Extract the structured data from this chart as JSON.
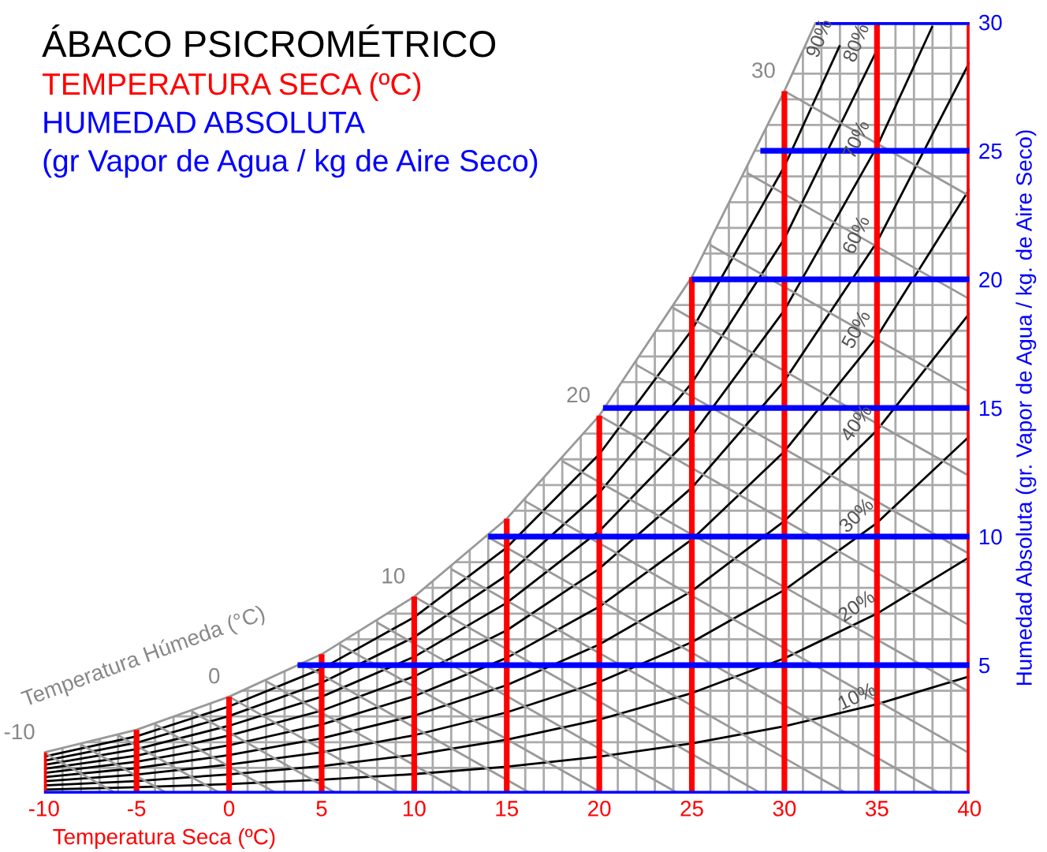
{
  "chart_data": {
    "type": "line",
    "title": "ÁBACO PSICROMÉTRICO",
    "subtitle": "TEMPERATURA SECA (ºC)",
    "xlabel": "Temperatura Seca (ºC)",
    "ylabel": "Humedad Absoluta (gr. Vapor de Agua / kg. de Aire Seco)",
    "xlim": [
      -10,
      40
    ],
    "ylim": [
      0,
      30
    ],
    "xticks": [
      -10,
      {
        "value": -9,
        "label": null
      },
      {
        "value": -8,
        "label": null
      },
      {
        "value": -7,
        "label": null
      },
      {
        "value": -6,
        "label": null
      },
      -5,
      {
        "value": -4,
        "label": null
      },
      {
        "value": -3,
        "label": null
      },
      {
        "value": -2,
        "label": null
      },
      {
        "value": -1,
        "label": null
      },
      0,
      {
        "value": 1,
        "label": null
      },
      {
        "value": 2,
        "label": null
      },
      {
        "value": 3,
        "label": null
      },
      {
        "value": 4,
        "label": null
      },
      5,
      {
        "value": 6,
        "label": null
      },
      {
        "value": 7,
        "label": null
      },
      {
        "value": 8,
        "label": null
      },
      {
        "value": 9,
        "label": null
      },
      10,
      {
        "value": 11,
        "label": null
      },
      {
        "value": 12,
        "label": null
      },
      {
        "value": 13,
        "label": null
      },
      {
        "value": 14,
        "label": null
      },
      15,
      {
        "value": 16,
        "label": null
      },
      {
        "value": 17,
        "label": null
      },
      {
        "value": 18,
        "label": null
      },
      {
        "value": 19,
        "label": null
      },
      20,
      {
        "value": 21,
        "label": null
      },
      {
        "value": 22,
        "label": null
      },
      {
        "value": 23,
        "label": null
      },
      {
        "value": 24,
        "label": null
      },
      25,
      {
        "value": 26,
        "label": null
      },
      {
        "value": 27,
        "label": null
      },
      {
        "value": 28,
        "label": null
      },
      {
        "value": 29,
        "label": null
      },
      30,
      {
        "value": 31,
        "label": null
      },
      {
        "value": 32,
        "label": null
      },
      {
        "value": 33,
        "label": null
      },
      {
        "value": 34,
        "label": null
      },
      35,
      {
        "value": 36,
        "label": null
      },
      {
        "value": 37,
        "label": null
      },
      {
        "value": 38,
        "label": null
      },
      {
        "value": 39,
        "label": null
      },
      40
    ],
    "yticks": [
      {
        "value": 0,
        "label": null
      },
      {
        "value": 1,
        "label": null
      },
      {
        "value": 2,
        "label": null
      },
      {
        "value": 3,
        "label": null
      },
      {
        "value": 4,
        "label": null
      },
      5,
      {
        "value": 6,
        "label": null
      },
      {
        "value": 7,
        "label": null
      },
      {
        "value": 8,
        "label": null
      },
      {
        "value": 9,
        "label": null
      },
      10,
      {
        "value": 11,
        "label": null
      },
      {
        "value": 12,
        "label": null
      },
      {
        "value": 13,
        "label": null
      },
      {
        "value": 14,
        "label": null
      },
      15,
      {
        "value": 16,
        "label": null
      },
      {
        "value": 17,
        "label": null
      },
      {
        "value": 18,
        "label": null
      },
      {
        "value": 19,
        "label": null
      },
      20,
      {
        "value": 21,
        "label": null
      },
      {
        "value": 22,
        "label": null
      },
      {
        "value": 23,
        "label": null
      },
      {
        "value": 24,
        "label": null
      },
      25,
      {
        "value": 26,
        "label": null
      },
      {
        "value": 27,
        "label": null
      },
      {
        "value": 28,
        "label": null
      },
      {
        "value": 29,
        "label": null
      },
      30
    ],
    "grid": true,
    "marker": "none",
    "line_style": "solid",
    "series": [
      {
        "color": "#999999",
        "x": [
          -10,
          -5,
          0,
          5,
          10,
          15,
          20,
          25,
          30,
          31.7
        ],
        "values": [
          1.6,
          2.48,
          3.77,
          5.42,
          7.66,
          10.69,
          14.7,
          20.09,
          27.32,
          30
        ]
      },
      {
        "color": "#000000",
        "x": [
          -10,
          -5,
          0,
          5,
          10,
          15,
          20,
          25,
          30,
          35,
          40
        ],
        "values": [
          0.16,
          0.25,
          0.37,
          0.54,
          0.76,
          1.05,
          1.44,
          1.95,
          2.62,
          3.48,
          4.56
        ]
      },
      {
        "color": "#000000",
        "x": [
          -10,
          -5,
          0,
          5,
          10,
          15,
          20,
          25,
          30,
          35,
          40
        ],
        "values": [
          0.32,
          0.49,
          0.75,
          1.07,
          1.51,
          2.1,
          2.88,
          3.91,
          5.26,
          7.0,
          9.2
        ]
      },
      {
        "color": "#000000",
        "x": [
          -10,
          -5,
          0,
          5,
          10,
          15,
          20,
          25,
          30,
          35,
          40
        ],
        "values": [
          0.48,
          0.74,
          1.13,
          1.61,
          2.27,
          3.16,
          4.34,
          5.89,
          7.92,
          10.53,
          13.9
        ]
      },
      {
        "color": "#000000",
        "x": [
          -10,
          -5,
          0,
          5,
          10,
          15,
          20,
          25,
          30,
          35,
          40
        ],
        "values": [
          0.64,
          0.99,
          1.5,
          2.15,
          3.03,
          4.22,
          5.8,
          7.88,
          10.6,
          14.13,
          18.68
        ]
      },
      {
        "color": "#000000",
        "x": [
          -10,
          -5,
          0,
          5,
          10,
          15,
          20,
          25,
          30,
          35,
          40
        ],
        "values": [
          0.8,
          1.24,
          1.88,
          2.69,
          3.79,
          5.28,
          7.27,
          9.88,
          13.31,
          17.77,
          23.51
        ]
      },
      {
        "color": "#000000",
        "x": [
          -10,
          -5,
          0,
          5,
          10,
          15,
          20,
          25,
          30,
          35,
          40
        ],
        "values": [
          0.96,
          1.48,
          2.26,
          3.23,
          4.56,
          6.35,
          8.75,
          11.9,
          16.05,
          21.45,
          28.44
        ]
      },
      {
        "color": "#000000",
        "x": [
          -10,
          -5,
          0,
          5,
          10,
          15,
          20,
          25,
          30,
          35,
          38
        ],
        "values": [
          1.12,
          1.73,
          2.64,
          3.77,
          5.32,
          7.42,
          10.21,
          13.92,
          18.8,
          25.16,
          29.85
        ]
      },
      {
        "color": "#000000",
        "x": [
          -10,
          -5,
          0,
          5,
          10,
          15,
          20,
          25,
          30,
          35
        ],
        "values": [
          1.28,
          1.98,
          3.02,
          4.31,
          6.09,
          8.49,
          11.7,
          15.97,
          21.58,
          28.92
        ]
      },
      {
        "color": "#000000",
        "x": [
          -10,
          -5,
          0,
          5,
          10,
          15,
          20,
          25,
          30,
          33
        ],
        "values": [
          1.44,
          2.23,
          3.39,
          4.86,
          6.86,
          9.57,
          13.2,
          18.03,
          24.39,
          29.1
        ]
      },
      {
        "color": "#999999",
        "x": [
          -10,
          -6.08
        ],
        "values": [
          1.6,
          0
        ]
      },
      {
        "color": "#999999",
        "x": [
          -8,
          -3.32
        ],
        "values": [
          1.91,
          0
        ]
      },
      {
        "color": "#999999",
        "x": [
          -6,
          -0.44
        ],
        "values": [
          2.27,
          0
        ]
      },
      {
        "color": "#999999",
        "x": [
          -4,
          2.59
        ],
        "values": [
          2.69,
          0
        ]
      },
      {
        "color": "#999999",
        "x": [
          -2,
          5.82
        ],
        "values": [
          3.19,
          0
        ]
      },
      {
        "color": "#999999",
        "x": [
          0,
          9.24
        ],
        "values": [
          3.77,
          0
        ]
      },
      {
        "color": "#999999",
        "x": [
          2,
          12.71
        ],
        "values": [
          4.37,
          0
        ]
      },
      {
        "color": "#999999",
        "x": [
          4,
          16.32
        ],
        "values": [
          5.03,
          0
        ]
      },
      {
        "color": "#999999",
        "x": [
          6,
          20.19
        ],
        "values": [
          5.79,
          0
        ]
      },
      {
        "color": "#999999",
        "x": [
          8,
          24.29
        ],
        "values": [
          6.65,
          0
        ]
      },
      {
        "color": "#999999",
        "x": [
          10,
          28.77
        ],
        "values": [
          7.66,
          0
        ]
      },
      {
        "color": "#999999",
        "x": [
          12,
          33.39
        ],
        "values": [
          8.73,
          0
        ]
      },
      {
        "color": "#999999",
        "x": [
          14,
          38.43
        ],
        "values": [
          9.97,
          0
        ]
      },
      {
        "color": "#999999",
        "x": [
          16,
          40
        ],
        "values": [
          11.37,
          1.57
        ]
      },
      {
        "color": "#999999",
        "x": [
          18,
          40
        ],
        "values": [
          12.93,
          3.95
        ]
      },
      {
        "color": "#999999",
        "x": [
          20,
          40
        ],
        "values": [
          14.7,
          6.54
        ]
      },
      {
        "color": "#999999",
        "x": [
          22,
          40
        ],
        "values": [
          16.67,
          9.32
        ]
      },
      {
        "color": "#999999",
        "x": [
          24,
          40
        ],
        "values": [
          18.88,
          12.35
        ]
      },
      {
        "color": "#999999",
        "x": [
          26,
          40
        ],
        "values": [
          21.33,
          15.62
        ]
      },
      {
        "color": "#999999",
        "x": [
          28,
          40
        ],
        "values": [
          24.13,
          19.23
        ]
      },
      {
        "color": "#999999",
        "x": [
          30,
          40
        ],
        "values": [
          27.32,
          23.24
        ]
      },
      {
        "color": "#ff0000",
        "x": [
          -10,
          -10
        ],
        "values": [
          0,
          1.6
        ]
      },
      {
        "color": "#ff0000",
        "x": [
          -5,
          -5
        ],
        "values": [
          0,
          2.48
        ]
      },
      {
        "color": "#ff0000",
        "x": [
          0,
          0
        ],
        "values": [
          0,
          3.77
        ]
      },
      {
        "color": "#ff0000",
        "x": [
          5,
          5
        ],
        "values": [
          0,
          5.42
        ]
      },
      {
        "color": "#ff0000",
        "x": [
          10,
          10
        ],
        "values": [
          0,
          7.66
        ]
      },
      {
        "color": "#ff0000",
        "x": [
          15,
          15
        ],
        "values": [
          0,
          10.69
        ]
      },
      {
        "color": "#ff0000",
        "x": [
          20,
          20
        ],
        "values": [
          0,
          14.7
        ]
      },
      {
        "color": "#ff0000",
        "x": [
          25,
          25
        ],
        "values": [
          0,
          20.09
        ]
      },
      {
        "color": "#ff0000",
        "x": [
          30,
          30
        ],
        "values": [
          0,
          27.32
        ]
      },
      {
        "color": "#ff0000",
        "x": [
          35,
          35
        ],
        "values": [
          0,
          30
        ]
      },
      {
        "color": "#ff0000",
        "x": [
          40,
          40
        ],
        "values": [
          0,
          30
        ]
      },
      {
        "color": "#0000ff",
        "x": [
          -10,
          40
        ],
        "values": [
          0,
          0
        ]
      },
      {
        "color": "#0000ff",
        "x": [
          3.7,
          40
        ],
        "values": [
          5,
          5
        ]
      },
      {
        "color": "#0000ff",
        "x": [
          14.0,
          40
        ],
        "values": [
          10,
          10
        ]
      },
      {
        "color": "#0000ff",
        "x": [
          20.2,
          40
        ],
        "values": [
          15,
          15
        ]
      },
      {
        "color": "#0000ff",
        "x": [
          25.0,
          40
        ],
        "values": [
          20,
          20
        ]
      },
      {
        "color": "#0000ff",
        "x": [
          28.7,
          40
        ],
        "values": [
          25,
          25
        ]
      },
      {
        "color": "#0000ff",
        "x": [
          31.7,
          40
        ],
        "values": [
          30,
          30
        ]
      }
    ],
    "annotations": [
      "HUMEDAD ABSOLUTA",
      "(gr Vapor de Agua / kg de Aire Seco)",
      "Temperatura Húmeda (°C)",
      {
        "text": "-10",
        "x": -10,
        "y": 1.6
      },
      {
        "text": "0",
        "x": 0,
        "y": 3.77
      },
      {
        "text": "10",
        "x": 10,
        "y": 7.66
      },
      {
        "text": "20",
        "x": 20,
        "y": 14.7
      },
      {
        "text": "30",
        "x": 30,
        "y": 27.32
      },
      {
        "text": "10%",
        "x": 35,
        "y": 3.48
      },
      {
        "text": "20%",
        "x": 35,
        "y": 7.0
      },
      {
        "text": "30%",
        "x": 35,
        "y": 10.53
      },
      {
        "text": "40%",
        "x": 35,
        "y": 14.13
      },
      {
        "text": "50%",
        "x": 35,
        "y": 17.77
      },
      {
        "text": "60%",
        "x": 35,
        "y": 21.45
      },
      {
        "text": "70%",
        "x": 35,
        "y": 25.16
      },
      {
        "text": "80%",
        "x": 35,
        "y": 28.92
      },
      {
        "text": "90%",
        "x": 33,
        "y": 29.1
      }
    ]
  }
}
